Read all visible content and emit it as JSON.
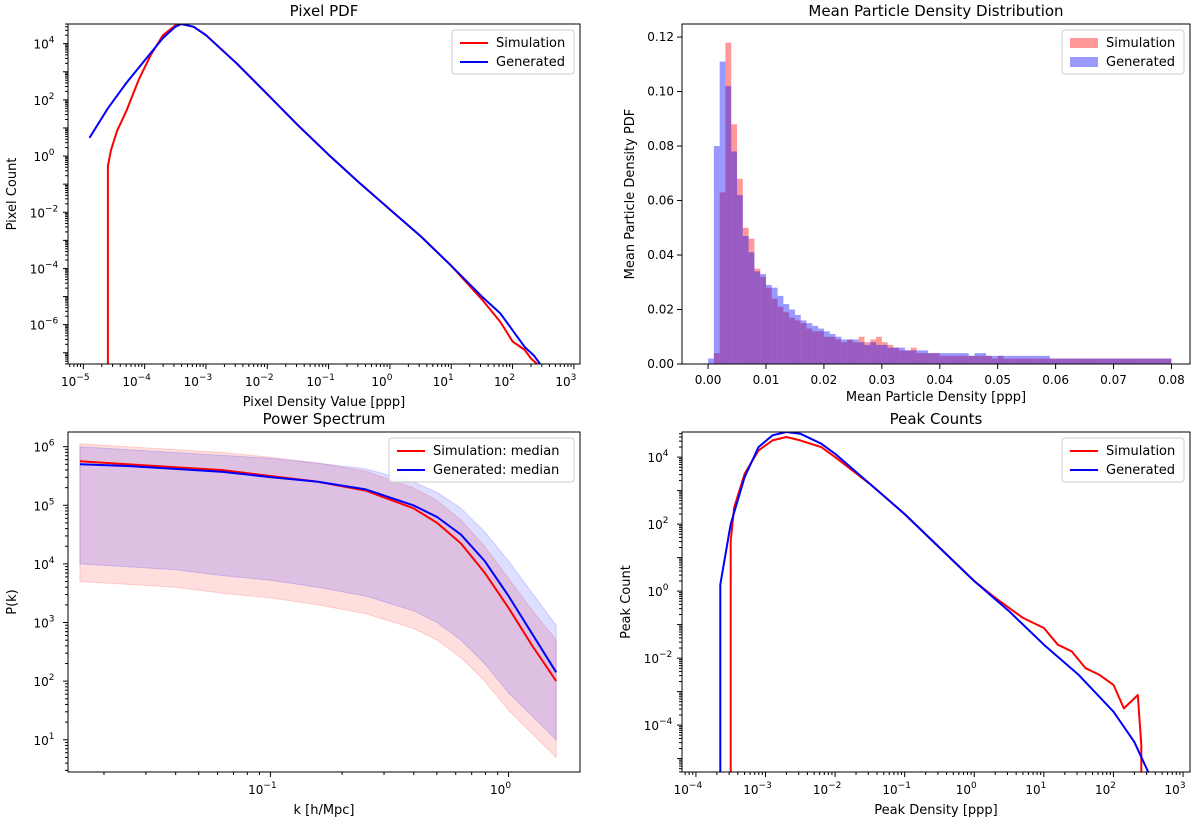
{
  "chart_data": [
    {
      "id": "pixel_pdf",
      "type": "line",
      "title": "Pixel PDF",
      "xlabel": "Pixel Density Value [ppp]",
      "ylabel": "Pixel Count",
      "xscale": "log",
      "yscale": "log",
      "xlim_log10": [
        -5.25,
        3.1
      ],
      "ylim_log10": [
        -7.4,
        4.7
      ],
      "xticks_exp": [
        -5,
        -4,
        -3,
        -2,
        -1,
        0,
        1,
        2,
        3
      ],
      "yticks_exp": [
        -6,
        -4,
        -2,
        0,
        2,
        4
      ],
      "legend": "top-right",
      "series": [
        {
          "name": "Simulation",
          "color": "#ff0000",
          "log10_x": [
            -4.6,
            -4.6,
            -4.55,
            -4.45,
            -4.3,
            -4.1,
            -3.9,
            -3.7,
            -3.5,
            -3.4,
            -3.2,
            -3.0,
            -2.5,
            -2.0,
            -1.5,
            -1.0,
            -0.5,
            0.0,
            0.5,
            1.0,
            1.5,
            1.8,
            2.0,
            2.2,
            2.3,
            2.4
          ],
          "log10_y": [
            -7.4,
            -0.35,
            0.2,
            0.9,
            1.6,
            2.7,
            3.6,
            4.3,
            4.65,
            4.7,
            4.6,
            4.3,
            3.3,
            2.2,
            1.1,
            0.05,
            -0.95,
            -1.9,
            -2.85,
            -3.9,
            -5.1,
            -5.9,
            -6.6,
            -6.9,
            -7.2,
            -7.4
          ]
        },
        {
          "name": "Generated",
          "color": "#0000ff",
          "log10_x": [
            -4.9,
            -4.6,
            -4.3,
            -4.0,
            -3.7,
            -3.5,
            -3.4,
            -3.2,
            -3.0,
            -2.5,
            -2.0,
            -1.5,
            -1.0,
            -0.5,
            0.0,
            0.5,
            1.0,
            1.5,
            1.8,
            2.0,
            2.2,
            2.35,
            2.45
          ],
          "log10_y": [
            0.65,
            1.7,
            2.6,
            3.4,
            4.2,
            4.6,
            4.7,
            4.6,
            4.3,
            3.3,
            2.2,
            1.1,
            0.05,
            -0.95,
            -1.9,
            -2.85,
            -3.9,
            -5.0,
            -5.6,
            -6.2,
            -6.8,
            -7.1,
            -7.4
          ]
        }
      ]
    },
    {
      "id": "mean_density",
      "type": "histogram",
      "title": "Mean Particle Density Distribution",
      "xlabel": "Mean Particle Density [ppp]",
      "ylabel": "Mean Particle Density PDF",
      "xlim": [
        -0.0045,
        0.0832
      ],
      "ylim": [
        0,
        0.1248
      ],
      "xticks": [
        0.0,
        0.01,
        0.02,
        0.03,
        0.04,
        0.05,
        0.06,
        0.07,
        0.08
      ],
      "xtick_labels": [
        "0.00",
        "0.01",
        "0.02",
        "0.03",
        "0.04",
        "0.05",
        "0.06",
        "0.07",
        "0.08"
      ],
      "yticks": [
        0.0,
        0.02,
        0.04,
        0.06,
        0.08,
        0.1,
        0.12
      ],
      "ytick_labels": [
        "0.00",
        "0.02",
        "0.04",
        "0.06",
        "0.08",
        "0.10",
        "0.12"
      ],
      "bin_start": 0.0,
      "bin_width": 0.001,
      "legend": "top-right",
      "series": [
        {
          "name": "Simulation",
          "color": "#ff0000",
          "alpha": 0.4,
          "values": [
            0,
            0.004,
            0.063,
            0.118,
            0.088,
            0.068,
            0.05,
            0.046,
            0.035,
            0.032,
            0.028,
            0.024,
            0.021,
            0.019,
            0.017,
            0.016,
            0.015,
            0.013,
            0.012,
            0.012,
            0.01,
            0.01,
            0.009,
            0.008,
            0.009,
            0.008,
            0.01,
            0.008,
            0.009,
            0.01,
            0.008,
            0.007,
            0.006,
            0.005,
            0.005,
            0.006,
            0.004,
            0.004,
            0.004,
            0.004,
            0.003,
            0.003,
            0.003,
            0.003,
            0.003,
            0.003,
            0.003,
            0.003,
            0.003,
            0.002,
            0.003,
            0.002,
            0.002,
            0.002,
            0.002,
            0.002,
            0.002,
            0.002,
            0.002,
            0.002,
            0.002,
            0.002,
            0.002,
            0.002,
            0.002,
            0.002,
            0.002,
            0.002,
            0.002,
            0.002,
            0.002,
            0.002,
            0.002,
            0.002,
            0.002,
            0.002,
            0.002,
            0.002,
            0.002,
            0.002
          ]
        },
        {
          "name": "Generated",
          "color": "#0000ff",
          "alpha": 0.4,
          "values": [
            0.002,
            0.08,
            0.111,
            0.102,
            0.078,
            0.062,
            0.047,
            0.041,
            0.034,
            0.033,
            0.029,
            0.028,
            0.025,
            0.022,
            0.02,
            0.018,
            0.016,
            0.015,
            0.014,
            0.013,
            0.012,
            0.011,
            0.01,
            0.009,
            0.009,
            0.009,
            0.008,
            0.007,
            0.008,
            0.007,
            0.007,
            0.006,
            0.006,
            0.006,
            0.005,
            0.005,
            0.005,
            0.005,
            0.004,
            0.004,
            0.004,
            0.004,
            0.004,
            0.004,
            0.004,
            0.003,
            0.004,
            0.004,
            0.003,
            0.003,
            0.003,
            0.003,
            0.003,
            0.003,
            0.003,
            0.003,
            0.003,
            0.003,
            0.003,
            0.002,
            0.002,
            0.002,
            0.002,
            0.002,
            0.002,
            0.002,
            0.002,
            0.002,
            0.002,
            0.002,
            0.002,
            0.002,
            0.002,
            0.002,
            0.002,
            0.002,
            0.002,
            0.002,
            0.002,
            0.002
          ]
        }
      ]
    },
    {
      "id": "power_spectrum",
      "type": "line",
      "title": "Power Spectrum",
      "xlabel": "k [h/Mpc]",
      "ylabel": "P(k)",
      "xscale": "log",
      "yscale": "log",
      "xlim_log10": [
        -1.85,
        0.3
      ],
      "ylim_log10": [
        0.45,
        6.25
      ],
      "xticks_exp": [
        -1,
        0
      ],
      "yticks_exp": [
        1,
        2,
        3,
        4,
        5,
        6
      ],
      "legend": "top-right",
      "series": [
        {
          "name": "Simulation: median",
          "color": "#ff0000",
          "log10_x": [
            -1.8,
            -1.6,
            -1.4,
            -1.2,
            -1.0,
            -0.8,
            -0.6,
            -0.4,
            -0.3,
            -0.2,
            -0.1,
            0.0,
            0.1,
            0.2
          ],
          "log10_y": [
            5.75,
            5.7,
            5.65,
            5.6,
            5.5,
            5.4,
            5.25,
            4.95,
            4.7,
            4.35,
            3.85,
            3.25,
            2.6,
            2.0
          ],
          "band_low": [
            3.7,
            3.65,
            3.6,
            3.5,
            3.42,
            3.3,
            3.15,
            2.9,
            2.7,
            2.4,
            2.0,
            1.5,
            1.1,
            0.7
          ],
          "band_high": [
            6.05,
            6.0,
            5.95,
            5.9,
            5.82,
            5.72,
            5.58,
            5.3,
            5.08,
            4.75,
            4.3,
            3.75,
            3.2,
            2.7
          ]
        },
        {
          "name": "Generated: median",
          "color": "#0000ff",
          "log10_x": [
            -1.8,
            -1.6,
            -1.4,
            -1.2,
            -1.0,
            -0.8,
            -0.6,
            -0.4,
            -0.3,
            -0.2,
            -0.1,
            0.0,
            0.1,
            0.2
          ],
          "log10_y": [
            5.7,
            5.67,
            5.62,
            5.57,
            5.48,
            5.4,
            5.27,
            5.0,
            4.8,
            4.5,
            4.05,
            3.45,
            2.8,
            2.15
          ],
          "band_low": [
            4.0,
            3.95,
            3.9,
            3.8,
            3.72,
            3.6,
            3.45,
            3.2,
            3.0,
            2.7,
            2.3,
            1.8,
            1.4,
            1.0
          ],
          "band_high": [
            6.0,
            5.95,
            5.9,
            5.85,
            5.8,
            5.72,
            5.62,
            5.4,
            5.22,
            4.95,
            4.55,
            4.05,
            3.5,
            2.95
          ]
        }
      ]
    },
    {
      "id": "peak_counts",
      "type": "line",
      "title": "Peak Counts",
      "xlabel": "Peak Density [ppp]",
      "ylabel": "Peak Count",
      "xscale": "log",
      "yscale": "log",
      "xlim_log10": [
        -4.2,
        3.1
      ],
      "ylim_log10": [
        -5.4,
        4.75
      ],
      "xticks_exp": [
        -4,
        -3,
        -2,
        -1,
        0,
        1,
        2,
        3
      ],
      "yticks_exp": [
        -4,
        -2,
        0,
        2,
        4
      ],
      "legend": "top-right",
      "series": [
        {
          "name": "Simulation",
          "color": "#ff0000",
          "log10_x": [
            -3.5,
            -3.5,
            -3.45,
            -3.3,
            -3.1,
            -2.9,
            -2.7,
            -2.5,
            -2.2,
            -2.0,
            -1.5,
            -1.0,
            -0.5,
            0.0,
            0.3,
            0.5,
            0.7,
            1.0,
            1.2,
            1.4,
            1.6,
            1.8,
            2.0,
            2.15,
            2.35,
            2.4,
            2.4
          ],
          "log10_y": [
            -5.4,
            1.5,
            2.5,
            3.5,
            4.2,
            4.5,
            4.6,
            4.5,
            4.3,
            4.0,
            3.2,
            2.3,
            1.3,
            0.3,
            -0.2,
            -0.5,
            -0.8,
            -1.1,
            -1.6,
            -1.8,
            -2.3,
            -2.5,
            -2.8,
            -3.5,
            -3.1,
            -4.6,
            -5.4
          ]
        },
        {
          "name": "Generated",
          "color": "#0000ff",
          "log10_x": [
            -3.65,
            -3.65,
            -3.5,
            -3.3,
            -3.1,
            -2.9,
            -2.7,
            -2.5,
            -2.2,
            -2.0,
            -1.5,
            -1.0,
            -0.5,
            0.0,
            0.5,
            1.0,
            1.5,
            2.0,
            2.3,
            2.5
          ],
          "log10_y": [
            -5.4,
            0.2,
            2.0,
            3.4,
            4.3,
            4.65,
            4.75,
            4.7,
            4.4,
            4.1,
            3.2,
            2.3,
            1.3,
            0.3,
            -0.6,
            -1.6,
            -2.5,
            -3.6,
            -4.5,
            -5.4
          ]
        }
      ]
    }
  ]
}
